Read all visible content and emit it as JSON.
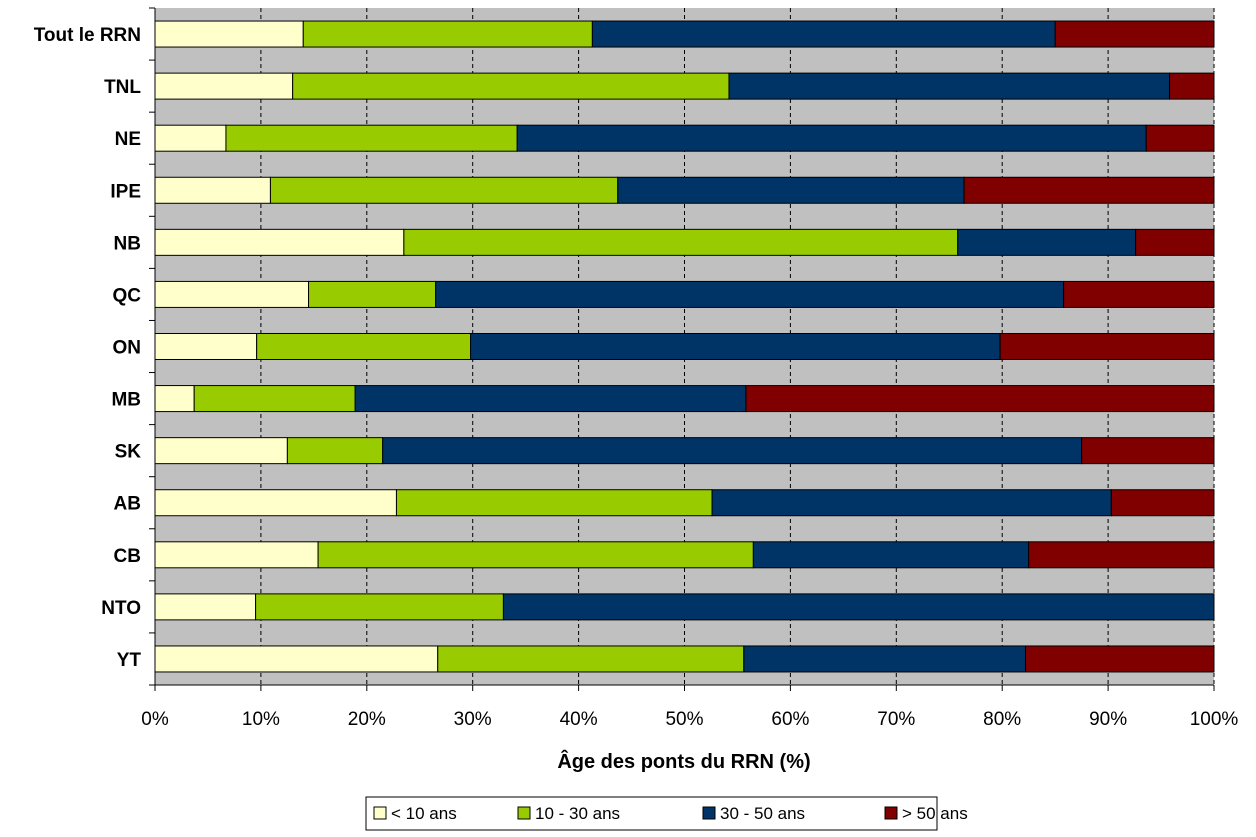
{
  "chart_data": {
    "type": "bar",
    "orientation": "horizontal",
    "stacked": true,
    "percent": true,
    "categories": [
      "Tout le RRN",
      "TNL",
      "NE",
      "IPE",
      "NB",
      "QC",
      "ON",
      "MB",
      "SK",
      "AB",
      "CB",
      "NTO",
      "YT"
    ],
    "series": [
      {
        "name": "< 10 ans",
        "color": "#ffffcc",
        "values": [
          14,
          13,
          6.7,
          10.9,
          23.5,
          14.5,
          9.6,
          3.7,
          12.5,
          22.8,
          15.4,
          9.5,
          26.7
        ]
      },
      {
        "name": "10 - 30 ans",
        "color": "#99cc00",
        "values": [
          27.3,
          41.2,
          27.5,
          32.8,
          52.3,
          12,
          20.2,
          15.2,
          9,
          29.8,
          41.1,
          23.4,
          28.9
        ]
      },
      {
        "name": "30 - 50 ans",
        "color": "#003366",
        "values": [
          43.7,
          41.6,
          59.4,
          32.7,
          16.8,
          59.3,
          50,
          36.9,
          66,
          37.7,
          26,
          67.1,
          26.6
        ]
      },
      {
        "name": "> 50 ans",
        "color": "#800000",
        "values": [
          15,
          4.2,
          6.4,
          23.6,
          7.4,
          14.2,
          20.2,
          44.2,
          12.5,
          9.7,
          17.5,
          0,
          17.8
        ]
      }
    ],
    "xlabel": "Âge des ponts du RRN (%)",
    "xlim": [
      0,
      100
    ],
    "x_ticks": [
      "0%",
      "10%",
      "20%",
      "30%",
      "40%",
      "50%",
      "60%",
      "70%",
      "80%",
      "90%",
      "100%"
    ],
    "grid": "vertical dashed",
    "plot_background": "#c0c0c0",
    "legend_position": "bottom-center"
  }
}
